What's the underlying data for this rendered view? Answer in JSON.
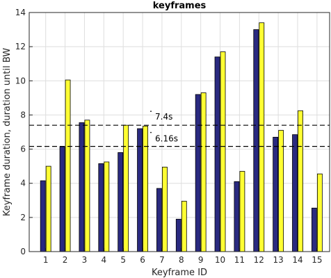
{
  "chart_data": {
    "type": "bar",
    "title": "keyframes",
    "xlabel": "Keyframe ID",
    "ylabel": "Keyframe duration, duration until BW",
    "categories": [
      "1",
      "2",
      "3",
      "4",
      "5",
      "6",
      "7",
      "8",
      "9",
      "10",
      "11",
      "12",
      "13",
      "14",
      "15"
    ],
    "series": [
      {
        "color": "#2a2a80",
        "values": [
          4.15,
          6.15,
          7.55,
          5.15,
          5.8,
          7.2,
          3.7,
          1.9,
          9.2,
          11.4,
          4.1,
          13.0,
          6.7,
          6.85,
          2.55
        ]
      },
      {
        "color": "#ffff33",
        "values": [
          5.0,
          10.05,
          7.7,
          5.25,
          7.4,
          7.35,
          4.95,
          2.95,
          9.3,
          11.7,
          4.7,
          13.4,
          7.1,
          8.25,
          4.55
        ]
      }
    ],
    "ylim": [
      0,
      14
    ],
    "yticks": [
      "0",
      "2",
      "4",
      "6",
      "8",
      "10",
      "12",
      "14"
    ],
    "grid": true,
    "reference_lines": [
      {
        "value": 7.4,
        "label": "7.4s"
      },
      {
        "value": 6.16,
        "label": "6.16s"
      }
    ]
  }
}
